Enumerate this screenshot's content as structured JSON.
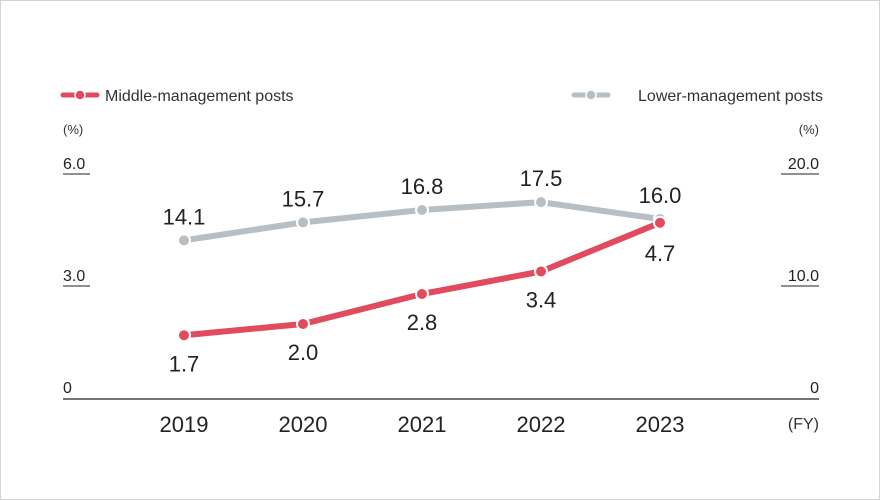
{
  "chart_data": {
    "type": "line",
    "categories": [
      "2019",
      "2020",
      "2021",
      "2022",
      "2023"
    ],
    "x_unit": "(FY)",
    "series": [
      {
        "name": "Middle-management posts",
        "axis": "left",
        "color": "#e24a5e",
        "values": [
          1.7,
          2.0,
          2.8,
          3.4,
          4.7
        ],
        "labels": [
          "1.7",
          "2.0",
          "2.8",
          "3.4",
          "4.7"
        ]
      },
      {
        "name": "Lower-management posts",
        "axis": "right",
        "color": "#b8bfc4",
        "values": [
          14.1,
          15.7,
          16.8,
          17.5,
          16.0
        ],
        "labels": [
          "14.1",
          "15.7",
          "16.8",
          "17.5",
          "16.0"
        ]
      }
    ],
    "y_left": {
      "unit": "(%)",
      "range": [
        0,
        6.0
      ],
      "ticks": [
        "6.0",
        "3.0",
        "0"
      ]
    },
    "y_right": {
      "unit": "(%)",
      "range": [
        0,
        20.0
      ],
      "ticks": [
        "20.0",
        "10.0",
        "0"
      ]
    },
    "legend_position": "top"
  }
}
